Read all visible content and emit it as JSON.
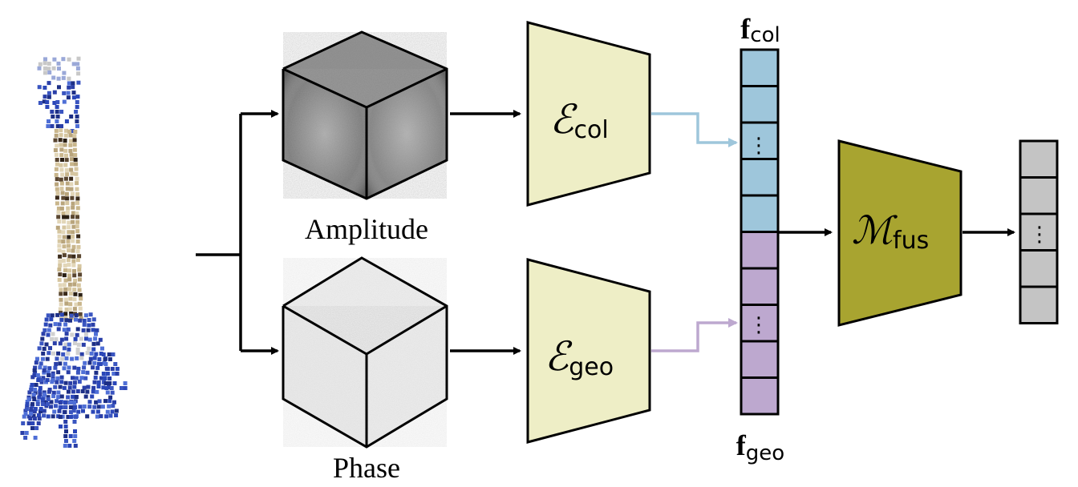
{
  "labels": {
    "amplitude": "Amplitude",
    "phase": "Phase"
  },
  "encoders": {
    "col": {
      "symbol": "ℰ",
      "subscript": "col"
    },
    "geo": {
      "symbol": "ℰ",
      "subscript": "geo"
    }
  },
  "fusion": {
    "symbol": "ℳ",
    "subscript": "fus"
  },
  "features": {
    "col": {
      "symbol": "f",
      "subscript": "col"
    },
    "geo": {
      "symbol": "f",
      "subscript": "geo"
    },
    "ellipsis": "⋮"
  },
  "colors": {
    "encoder_fill": "#eeeec6",
    "fusion_fill": "#a8a430",
    "col_cell": "#9ec6db",
    "geo_cell": "#bda8cf",
    "out_cell": "#c4c4c4",
    "col_arrow": "#9ec6db",
    "geo_arrow": "#bda8cf",
    "guitar_body": "#3048b0",
    "guitar_neck": "#cdbb95"
  }
}
